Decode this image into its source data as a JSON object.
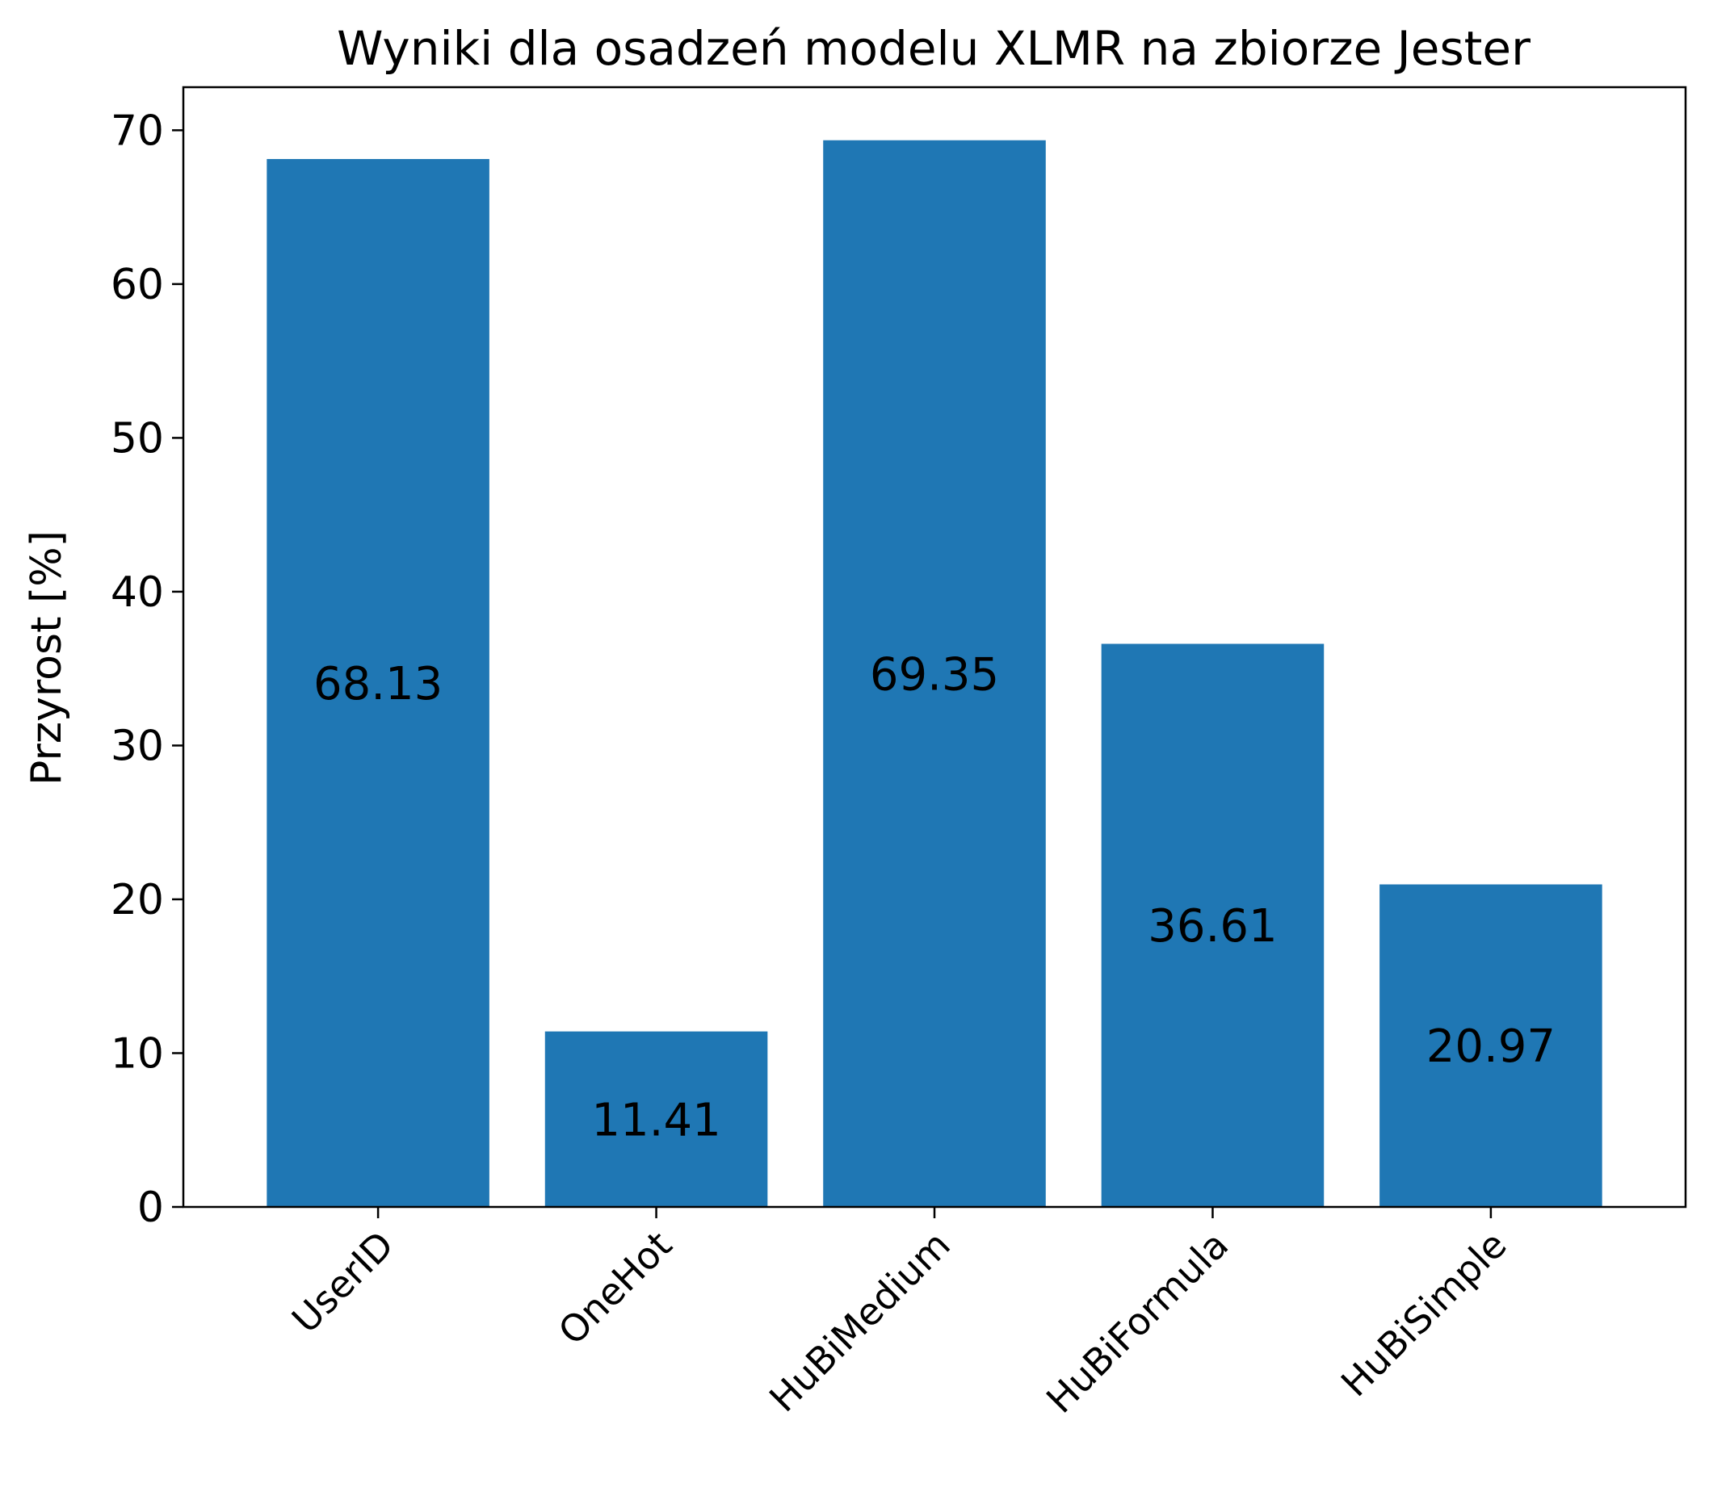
{
  "chart_data": {
    "type": "bar",
    "title": "Wyniki dla osadzeń modelu XLMR na zbiorze Jester",
    "xlabel": "",
    "ylabel": "Przyrost [%]",
    "categories": [
      "UserID",
      "OneHot",
      "HuBiMedium",
      "HuBiFormula",
      "HuBiSimple"
    ],
    "values": [
      68.13,
      11.41,
      69.35,
      36.61,
      20.97
    ],
    "data_labels": [
      "68.13",
      "11.41",
      "69.35",
      "36.61",
      "20.97"
    ],
    "ylim": [
      0,
      72.8
    ],
    "yticks": [
      0,
      10,
      20,
      30,
      40,
      50,
      60,
      70
    ],
    "ytick_labels": [
      "0",
      "10",
      "20",
      "30",
      "40",
      "50",
      "60",
      "70"
    ],
    "grid": false,
    "bar_color": "#1f77b4",
    "xtick_rotation_deg": -45
  }
}
